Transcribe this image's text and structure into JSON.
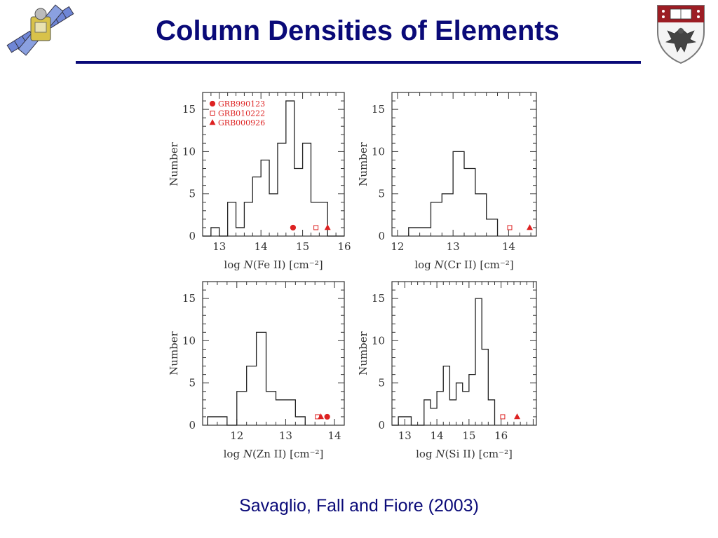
{
  "slide": {
    "title": "Column Densities of Elements",
    "caption": "Savaglio, Fall and Fiore (2003)"
  },
  "colors": {
    "title": "#0a0a78",
    "marker": "#dd2222",
    "histogram": "#222222"
  },
  "icons": {
    "top_left": "satellite-icon",
    "top_right": "university-crest-icon"
  },
  "chart_data": [
    {
      "type": "histogram",
      "ylabel": "Number",
      "xlabel": "log N(Fe II) [cm⁻²]",
      "xlim": [
        12.6,
        16.0
      ],
      "ylim": [
        0,
        17
      ],
      "xticks": [
        13,
        14,
        15,
        16
      ],
      "yticks": [
        0,
        5,
        10,
        15
      ],
      "bin_edges": [
        12.6,
        12.8,
        13.0,
        13.2,
        13.4,
        13.6,
        13.8,
        14.0,
        14.2,
        14.4,
        14.6,
        14.8,
        15.0,
        15.2,
        15.4,
        15.6,
        16.0
      ],
      "counts": [
        0,
        1,
        0,
        4,
        1,
        4,
        7,
        9,
        5,
        11,
        16,
        8,
        11,
        4,
        4,
        0
      ],
      "legend": [
        {
          "label": "GRB990123",
          "marker": "filled-circle"
        },
        {
          "label": "GRB010222",
          "marker": "open-square"
        },
        {
          "label": "GRB000926",
          "marker": "filled-triangle"
        }
      ],
      "legend_position": "top-left",
      "grb_points": [
        {
          "label": "GRB990123",
          "marker": "filled-circle",
          "x": 14.77,
          "y": 1
        },
        {
          "label": "GRB010222",
          "marker": "open-square",
          "x": 15.32,
          "y": 1
        },
        {
          "label": "GRB000926",
          "marker": "filled-triangle",
          "x": 15.6,
          "y": 1
        }
      ]
    },
    {
      "type": "histogram",
      "ylabel": "Number",
      "xlabel": "log N(Cr II) [cm⁻²]",
      "xlim": [
        11.9,
        14.5
      ],
      "ylim": [
        0,
        17
      ],
      "xticks": [
        12,
        13,
        14
      ],
      "yticks": [
        0,
        5,
        10,
        15
      ],
      "bin_edges": [
        12.2,
        12.4,
        12.6,
        12.8,
        13.0,
        13.2,
        13.4,
        13.6,
        13.8
      ],
      "counts": [
        1,
        1,
        4,
        5,
        10,
        8,
        5,
        2
      ],
      "grb_points": [
        {
          "label": "GRB010222",
          "marker": "open-square",
          "x": 14.02,
          "y": 1
        },
        {
          "label": "GRB000926",
          "marker": "filled-triangle",
          "x": 14.38,
          "y": 1
        }
      ]
    },
    {
      "type": "histogram",
      "ylabel": "Number",
      "xlabel": "log N(Zn II) [cm⁻²]",
      "xlim": [
        11.3,
        14.2
      ],
      "ylim": [
        0,
        17
      ],
      "xticks": [
        12,
        13,
        14
      ],
      "yticks": [
        0,
        5,
        10,
        15
      ],
      "bin_edges": [
        11.4,
        11.6,
        11.8,
        12.0,
        12.2,
        12.4,
        12.6,
        12.8,
        13.0,
        13.2,
        13.4
      ],
      "counts": [
        1,
        1,
        0,
        4,
        7,
        11,
        4,
        3,
        3,
        1
      ],
      "grb_points": [
        {
          "label": "GRB010222",
          "marker": "open-square",
          "x": 13.65,
          "y": 1
        },
        {
          "label": "GRB000926",
          "marker": "filled-triangle",
          "x": 13.72,
          "y": 1
        },
        {
          "label": "GRB990123",
          "marker": "filled-circle",
          "x": 13.85,
          "y": 1
        }
      ]
    },
    {
      "type": "histogram",
      "ylabel": "Number",
      "xlabel": "log N(Si II) [cm⁻²]",
      "xlim": [
        12.6,
        17.1
      ],
      "ylim": [
        0,
        17
      ],
      "xticks": [
        13,
        14,
        15,
        16
      ],
      "yticks": [
        0,
        5,
        10,
        15
      ],
      "bin_edges": [
        12.6,
        12.8,
        13.2,
        13.6,
        13.8,
        14.0,
        14.2,
        14.4,
        14.6,
        14.8,
        15.0,
        15.2,
        15.4,
        15.6,
        15.8
      ],
      "counts": [
        0,
        1,
        0,
        3,
        2,
        4,
        7,
        3,
        5,
        4,
        6,
        15,
        9,
        3
      ],
      "grb_points": [
        {
          "label": "GRB010222",
          "marker": "open-square",
          "x": 16.05,
          "y": 1
        },
        {
          "label": "GRB000926",
          "marker": "filled-triangle",
          "x": 16.5,
          "y": 1
        }
      ]
    }
  ]
}
